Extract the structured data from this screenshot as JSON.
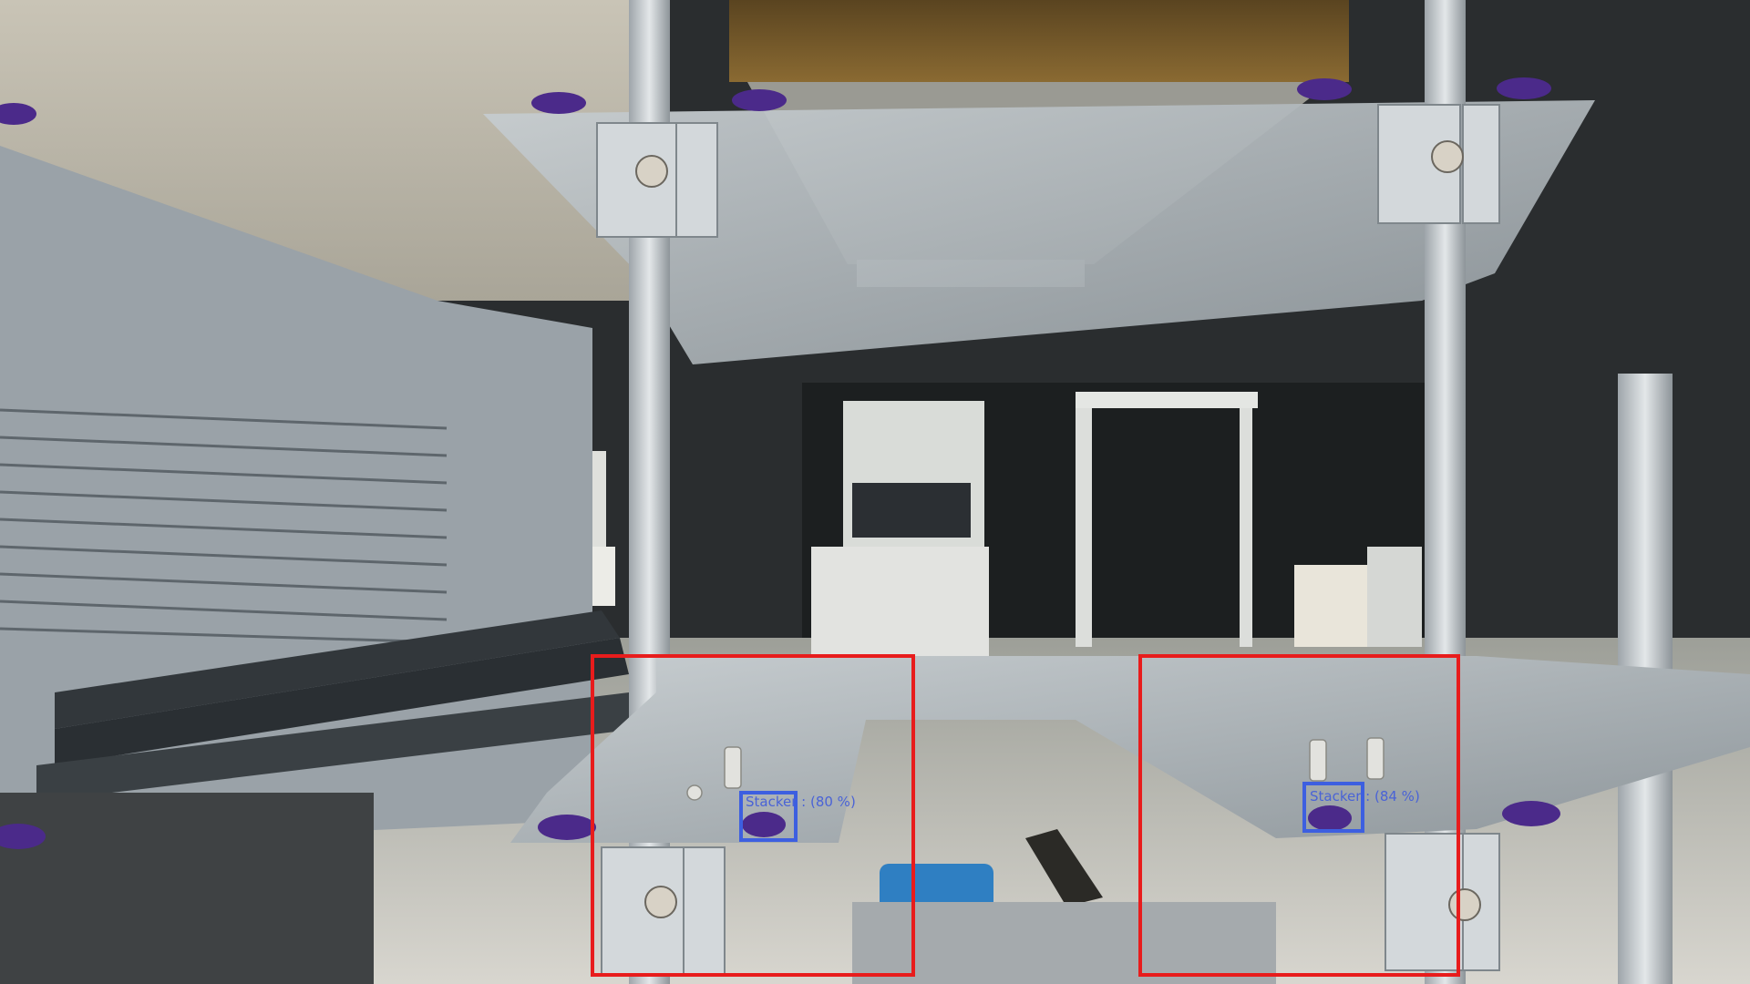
{
  "image": {
    "description": "camera frame of an aluminum rack/stacker with object-detection overlays"
  },
  "colors": {
    "roi_box": "#e81c1c",
    "detection_box": "#3d5fe0",
    "detection_text": "#4a63d6",
    "aluminum": "#b9bfc3",
    "purple_foot": "#4b2a8a",
    "dark_background": "#1f2326"
  },
  "regions_of_interest": [
    {
      "name": "left-roi"
    },
    {
      "name": "right-roi"
    }
  ],
  "detections": [
    {
      "label": "Stacker : (80 %)",
      "confidence": 80
    },
    {
      "label": "Stacker : (84 %)",
      "confidence": 84
    }
  ]
}
